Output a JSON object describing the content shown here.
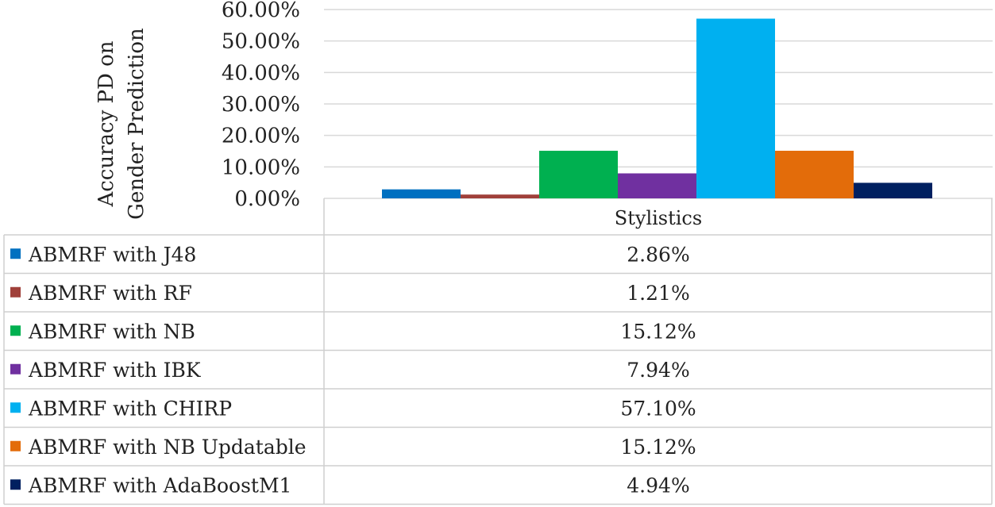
{
  "chart_data": {
    "type": "bar",
    "categories": [
      "Stylistics"
    ],
    "ylabel_lines": [
      "Accuracy PD on",
      "Gender Prediction"
    ],
    "ylim": [
      0,
      60
    ],
    "yticks": [
      "0.00%",
      "10.00%",
      "20.00%",
      "30.00%",
      "40.00%",
      "50.00%",
      "60.00%"
    ],
    "grid": true,
    "legend": "data-table",
    "series": [
      {
        "name": "ABMRF with J48",
        "values": [
          2.86
        ],
        "label": "2.86%",
        "color": "#0070C0"
      },
      {
        "name": "ABMRF with RF",
        "values": [
          1.21
        ],
        "label": "1.21%",
        "color": "#A0403A"
      },
      {
        "name": "ABMRF with NB",
        "values": [
          15.12
        ],
        "label": "15.12%",
        "color": "#00B050"
      },
      {
        "name": "ABMRF with IBK",
        "values": [
          7.94
        ],
        "label": "7.94%",
        "color": "#7030A0"
      },
      {
        "name": "ABMRF with CHIRP",
        "values": [
          57.1
        ],
        "label": "57.10%",
        "color": "#00B0F0"
      },
      {
        "name": "ABMRF with NB Updatable",
        "values": [
          15.12
        ],
        "label": "15.12%",
        "color": "#E36C0A"
      },
      {
        "name": "ABMRF with AdaBoostM1",
        "values": [
          4.94
        ],
        "label": "4.94%",
        "color": "#002060"
      }
    ]
  }
}
